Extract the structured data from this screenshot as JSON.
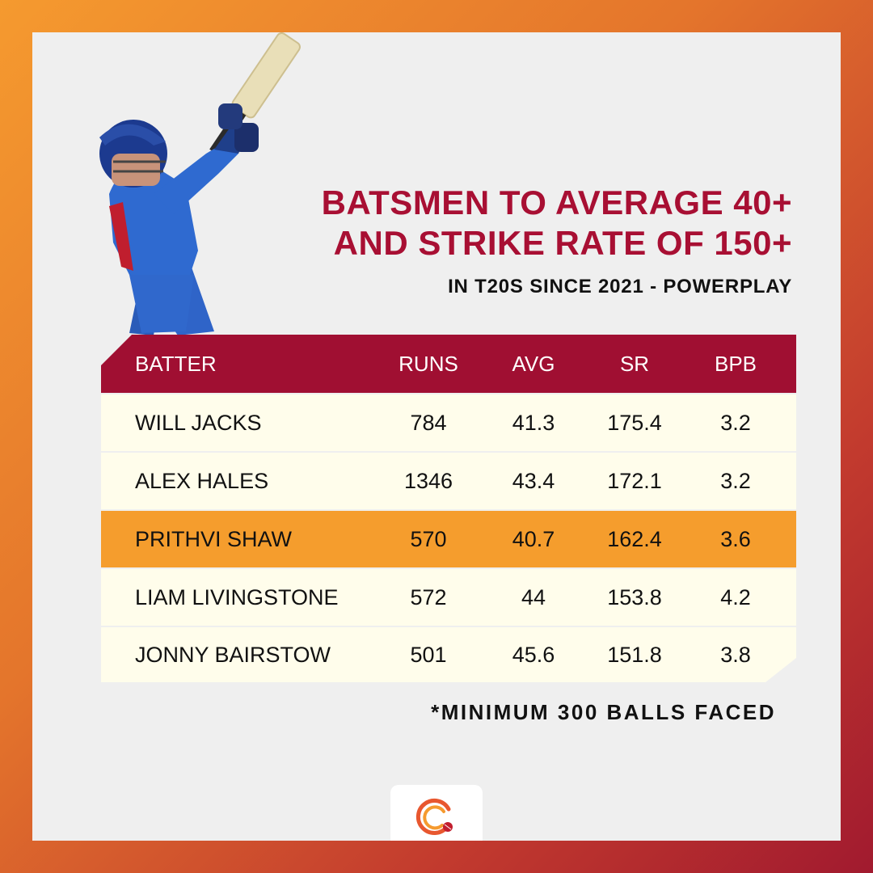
{
  "chart_data": {
    "type": "table",
    "title": "BATSMEN TO AVERAGE 40+",
    "title_line2": "AND STRIKE RATE OF 150+",
    "subtitle": "IN T20S SINCE 2021 - POWERPLAY",
    "columns": [
      "BATTER",
      "RUNS",
      "AVG",
      "SR",
      "BPB"
    ],
    "rows": [
      {
        "batter": "WILL JACKS",
        "runs": "784",
        "avg": "41.3",
        "sr": "175.4",
        "bpb": "3.2"
      },
      {
        "batter": "ALEX HALES",
        "runs": "1346",
        "avg": "43.4",
        "sr": "172.1",
        "bpb": "3.2"
      },
      {
        "batter": "PRITHVI SHAW",
        "runs": "570",
        "avg": "40.7",
        "sr": "162.4",
        "bpb": "3.6"
      },
      {
        "batter": "LIAM LIVINGSTONE",
        "runs": "572",
        "avg": "44",
        "sr": "153.8",
        "bpb": "4.2"
      },
      {
        "batter": "JONNY BAIRSTOW",
        "runs": "501",
        "avg": "45.6",
        "sr": "151.8",
        "bpb": "3.8"
      }
    ],
    "highlighted_row": 2,
    "footnote": "*MINIMUM 300 BALLS FACED"
  },
  "colors": {
    "accent": "#a80f33",
    "header_bg": "#a00f32",
    "row_bg": "#fffdeb",
    "highlight_bg": "#f59d2d",
    "card_bg": "#efefef"
  },
  "icons": {
    "player": "cricket-batter-illustration",
    "logo": "cricket-ball-logo-icon"
  }
}
